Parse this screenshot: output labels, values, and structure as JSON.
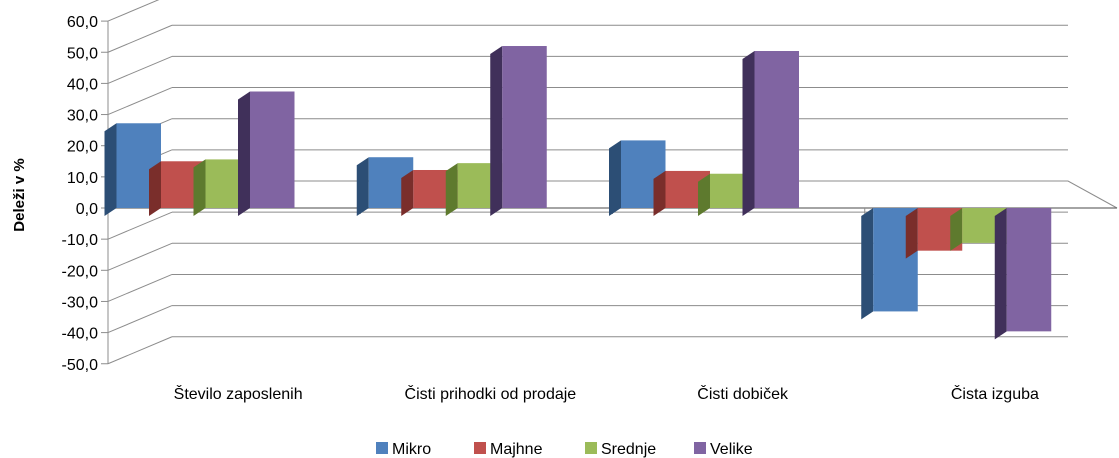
{
  "chart_data": {
    "type": "bar",
    "title": "",
    "xlabel": "",
    "ylabel": "Deleži v %",
    "ylim": [
      -50,
      60
    ],
    "yticks": [
      60,
      50,
      40,
      30,
      20,
      10,
      0,
      -10,
      -20,
      -30,
      -40,
      -50
    ],
    "ytick_labels": [
      "60,0",
      "50,0",
      "40,0",
      "30,0",
      "20,0",
      "10,0",
      "0,0",
      "-10,0",
      "-20,0",
      "-30,0",
      "-40,0",
      "-50,0"
    ],
    "grid": true,
    "legend_position": "bottom",
    "categories": [
      "Število zaposlenih",
      "Čisti prihodki od prodaje",
      "Čisti dobiček",
      "Čista izguba"
    ],
    "series": [
      {
        "name": "Mikro",
        "color": "#4F81BD",
        "side": "#2C4E75",
        "values": [
          27.2,
          16.3,
          21.7,
          -33.2
        ]
      },
      {
        "name": "Majhne",
        "color": "#C0504D",
        "side": "#7A2E2B",
        "values": [
          15.0,
          12.2,
          11.9,
          -13.7
        ]
      },
      {
        "name": "Srednje",
        "color": "#9BBB59",
        "side": "#5E7A2E",
        "values": [
          15.6,
          14.4,
          11.0,
          -11.2
        ]
      },
      {
        "name": "Velike",
        "color": "#8064A2",
        "side": "#40305A",
        "values": [
          37.4,
          52.0,
          50.4,
          -39.6
        ]
      }
    ]
  }
}
